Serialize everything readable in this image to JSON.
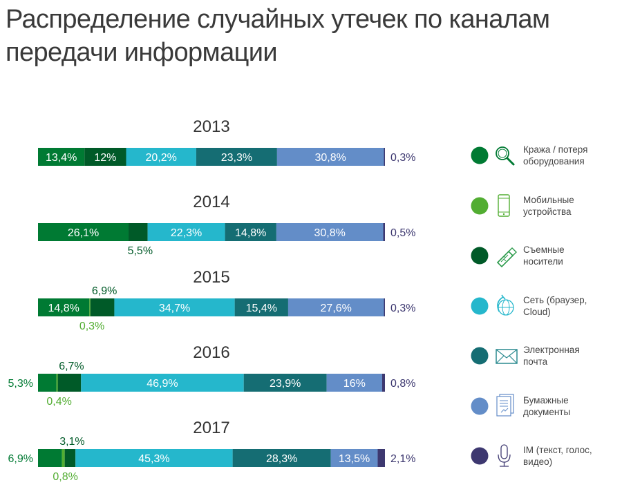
{
  "chart_data": {
    "type": "bar",
    "orientation": "horizontal",
    "stacked": true,
    "title": "Распределение случайных утечек по каналам передачи информации",
    "xlim": [
      0,
      100
    ],
    "unit": "%",
    "categories": [
      "2013",
      "2014",
      "2015",
      "2016",
      "2017"
    ],
    "series": [
      {
        "name": "Кража / потеря оборудования",
        "lines": [
          "Кража / потеря",
          "оборудования"
        ],
        "color": "#007a33",
        "icon": "magnifier-icon",
        "values": [
          13.4,
          26.1,
          14.8,
          5.3,
          6.9
        ],
        "labels": [
          "13,4%",
          "26,1%",
          "14,8%",
          "5,3%",
          "6,9%"
        ],
        "label_position": [
          "inside",
          "inside",
          "inside",
          "left",
          "left"
        ]
      },
      {
        "name": "Мобильные устройства",
        "lines": [
          "Мобильные",
          "устройства"
        ],
        "color": "#52ad32",
        "icon": "smartphone-icon",
        "values": [
          0,
          0,
          0.3,
          0.4,
          0.8
        ],
        "labels": [
          "",
          "",
          "0,3%",
          "0,4%",
          "0,8%"
        ],
        "label_position": [
          "none",
          "none",
          "below",
          "below",
          "below"
        ]
      },
      {
        "name": "Съемные носители",
        "lines": [
          "Съемные",
          "носители"
        ],
        "color": "#005a28",
        "icon": "usb-drive-icon",
        "values": [
          12,
          5.5,
          6.9,
          6.7,
          3.1
        ],
        "labels": [
          "12%",
          "5,5%",
          "6,9%",
          "6,7%",
          "3,1%"
        ],
        "label_position": [
          "inside",
          "below",
          "above",
          "above",
          "above"
        ]
      },
      {
        "name": "Сеть (браузер, Cloud)",
        "lines": [
          "Сеть (браузер,",
          "Cloud)"
        ],
        "color": "#25b7cc",
        "icon": "globe-icon",
        "values": [
          20.2,
          22.3,
          34.7,
          46.9,
          45.3
        ],
        "labels": [
          "20,2%",
          "22,3%",
          "34,7%",
          "46,9%",
          "45,3%"
        ],
        "label_position": [
          "inside",
          "inside",
          "inside",
          "inside",
          "inside"
        ]
      },
      {
        "name": "Электронная почта",
        "lines": [
          "Электронная",
          "почта"
        ],
        "color": "#156d73",
        "icon": "envelope-icon",
        "values": [
          23.3,
          14.8,
          15.4,
          23.9,
          28.3
        ],
        "labels": [
          "23,3%",
          "14,8%",
          "15,4%",
          "23,9%",
          "28,3%"
        ],
        "label_position": [
          "inside",
          "inside",
          "inside",
          "inside",
          "inside"
        ]
      },
      {
        "name": "Бумажные документы",
        "lines": [
          "Бумажные",
          "документы"
        ],
        "color": "#638dc8",
        "icon": "document-icon",
        "values": [
          30.8,
          30.8,
          27.6,
          16,
          13.5
        ],
        "labels": [
          "30,8%",
          "30,8%",
          "27,6%",
          "16%",
          "13,5%"
        ],
        "label_position": [
          "inside",
          "inside",
          "inside",
          "inside",
          "inside"
        ]
      },
      {
        "name": "IM (текст, голос, видео)",
        "lines": [
          "IM (текст, голос,",
          "видео)"
        ],
        "color": "#3d3870",
        "icon": "microphone-icon",
        "values": [
          0.3,
          0.5,
          0.3,
          0.8,
          2.1
        ],
        "labels": [
          "0,3%",
          "0,5%",
          "0,3%",
          "0,8%",
          "2,1%"
        ],
        "label_position": [
          "right",
          "right",
          "right",
          "right",
          "right"
        ]
      }
    ],
    "legend_placement": "right",
    "grid": false
  }
}
